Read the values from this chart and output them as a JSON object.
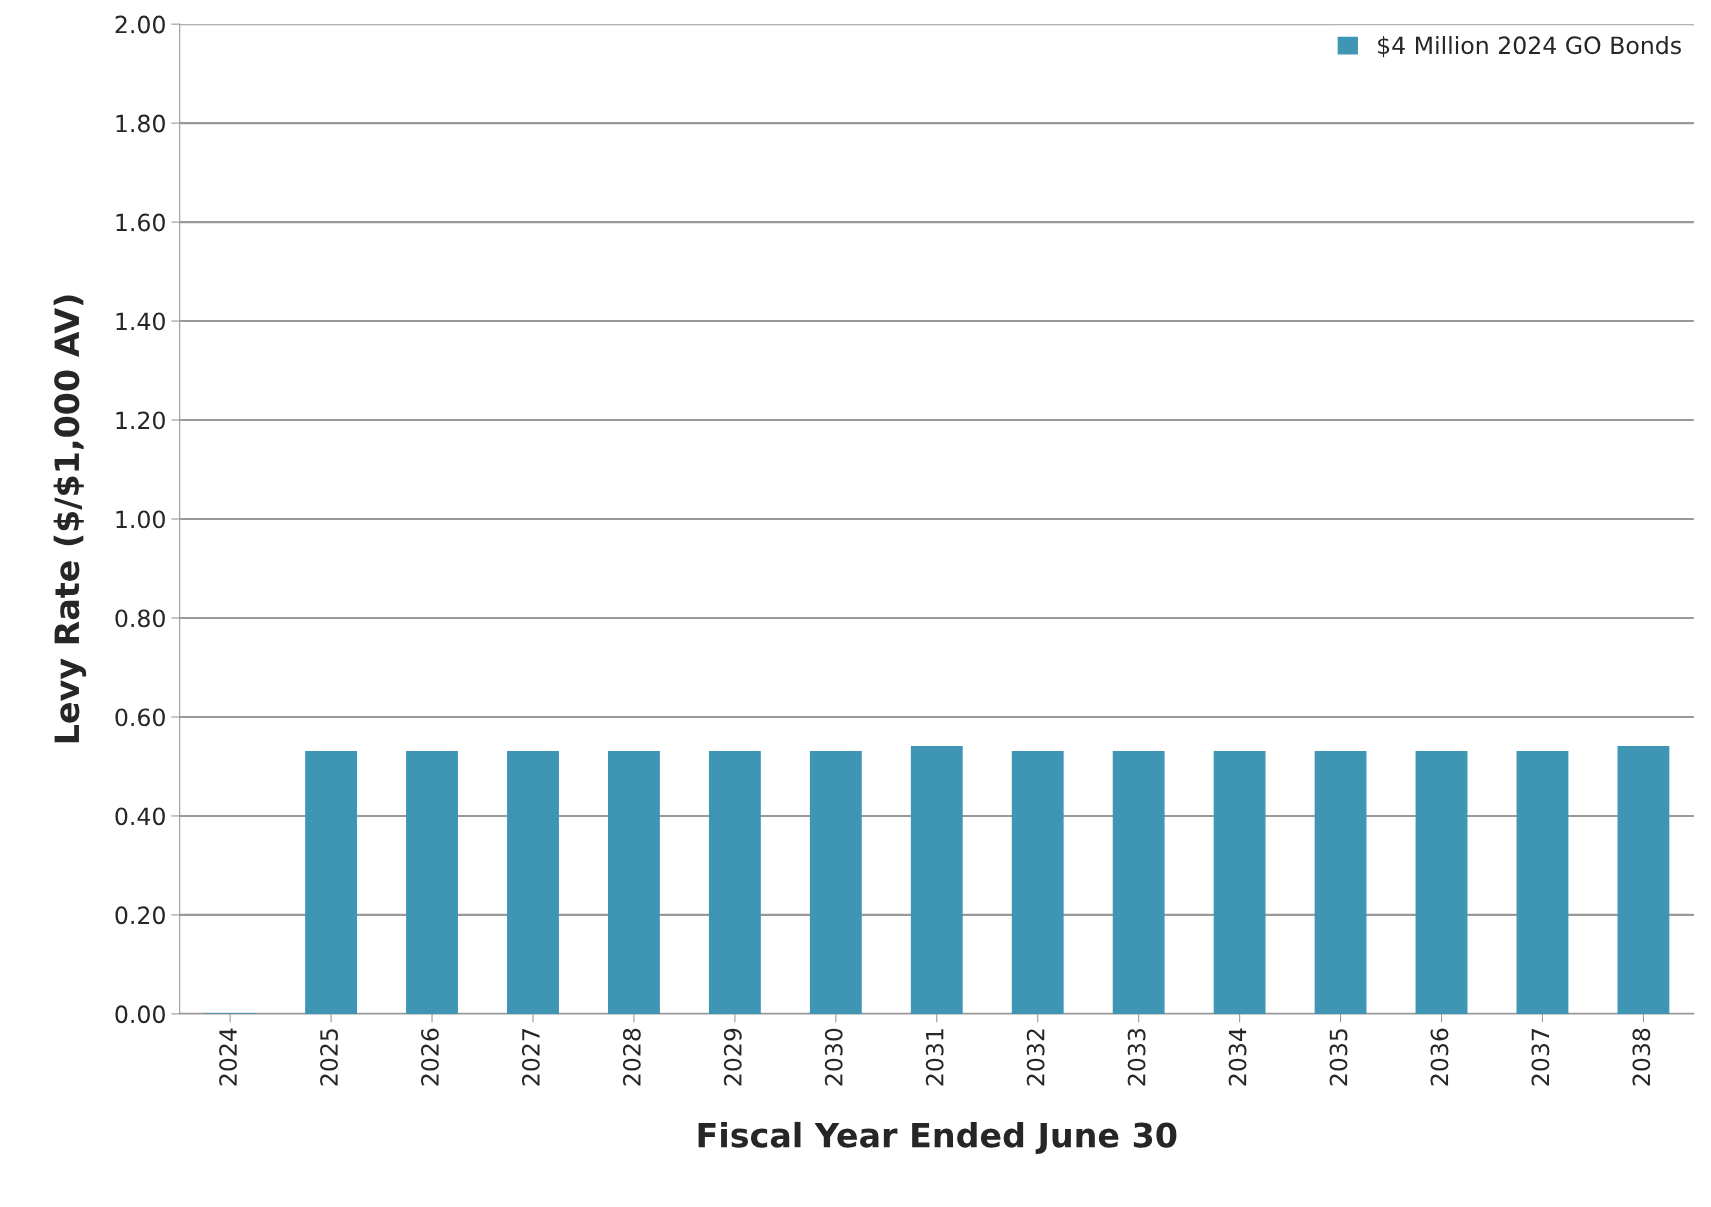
{
  "chart_data": {
    "type": "bar",
    "xlabel": "Fiscal Year Ended June 30",
    "ylabel": "Levy Rate ($/$1,000 AV)",
    "categories": [
      "2024",
      "2025",
      "2026",
      "2027",
      "2028",
      "2029",
      "2030",
      "2031",
      "2032",
      "2033",
      "2034",
      "2035",
      "2036",
      "2037",
      "2038"
    ],
    "series": [
      {
        "name": "$4 Million 2024 GO Bonds",
        "color": "#3f96b4",
        "values": [
          0,
          0.53,
          0.53,
          0.53,
          0.53,
          0.53,
          0.53,
          0.54,
          0.53,
          0.53,
          0.53,
          0.53,
          0.53,
          0.53,
          0.54
        ]
      }
    ],
    "ylim": [
      0,
      2
    ],
    "yticks": [
      {
        "value": 0,
        "label": "0.00"
      },
      {
        "value": 0.2,
        "label": "0.20"
      },
      {
        "value": 0.4,
        "label": "0.40"
      },
      {
        "value": 0.6,
        "label": "0.60"
      },
      {
        "value": 0.8,
        "label": "0.80"
      },
      {
        "value": 1.0,
        "label": "1.00"
      },
      {
        "value": 1.2,
        "label": "1.20"
      },
      {
        "value": 1.4,
        "label": "1.40"
      },
      {
        "value": 1.6,
        "label": "1.60"
      },
      {
        "value": 1.8,
        "label": "1.80"
      },
      {
        "value": 2.0,
        "label": "2.00"
      }
    ],
    "grid": "y",
    "legend": "top right"
  }
}
